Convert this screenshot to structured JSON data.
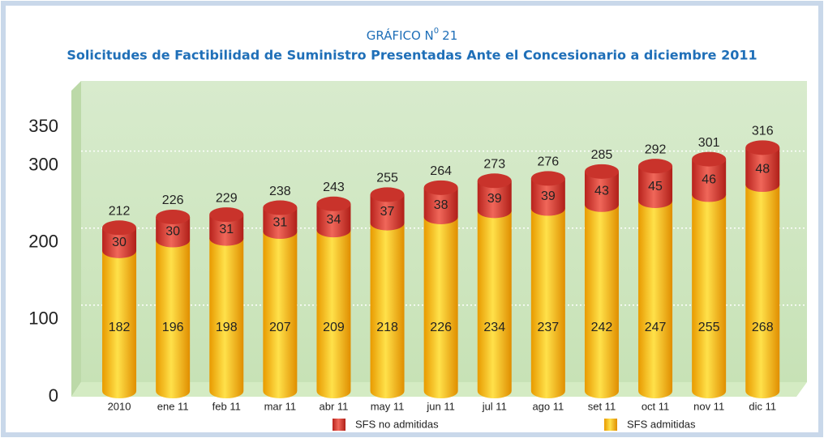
{
  "chart_data": {
    "type": "bar",
    "stacked": true,
    "title_prefix": "GRÁFICO N",
    "title_sup": "0",
    "title_suffix": "21",
    "title": "Solicitudes de Factibilidad de Suministro Presentadas Ante el Concesionario a diciembre 2011",
    "categories": [
      "2010",
      "ene 11",
      "feb 11",
      "mar 11",
      "abr 11",
      "may 11",
      "jun 11",
      "jul 11",
      "ago 11",
      "set 11",
      "oct 11",
      "nov 11",
      "dic 11"
    ],
    "series": [
      {
        "name": "SFS no admitidas",
        "color": "#d83a30",
        "values": [
          30,
          30,
          31,
          31,
          34,
          37,
          38,
          39,
          39,
          43,
          45,
          46,
          48
        ]
      },
      {
        "name": "SFS admitidas",
        "color": "#f5b800",
        "values": [
          182,
          196,
          198,
          207,
          209,
          218,
          226,
          234,
          237,
          242,
          247,
          255,
          268
        ]
      }
    ],
    "totals": [
      212,
      226,
      229,
      238,
      243,
      255,
      264,
      273,
      276,
      285,
      292,
      301,
      316
    ],
    "ylim": [
      0,
      350
    ],
    "yticks": [
      0,
      100,
      200,
      300,
      350
    ],
    "grid": true,
    "legend": "bottom"
  }
}
